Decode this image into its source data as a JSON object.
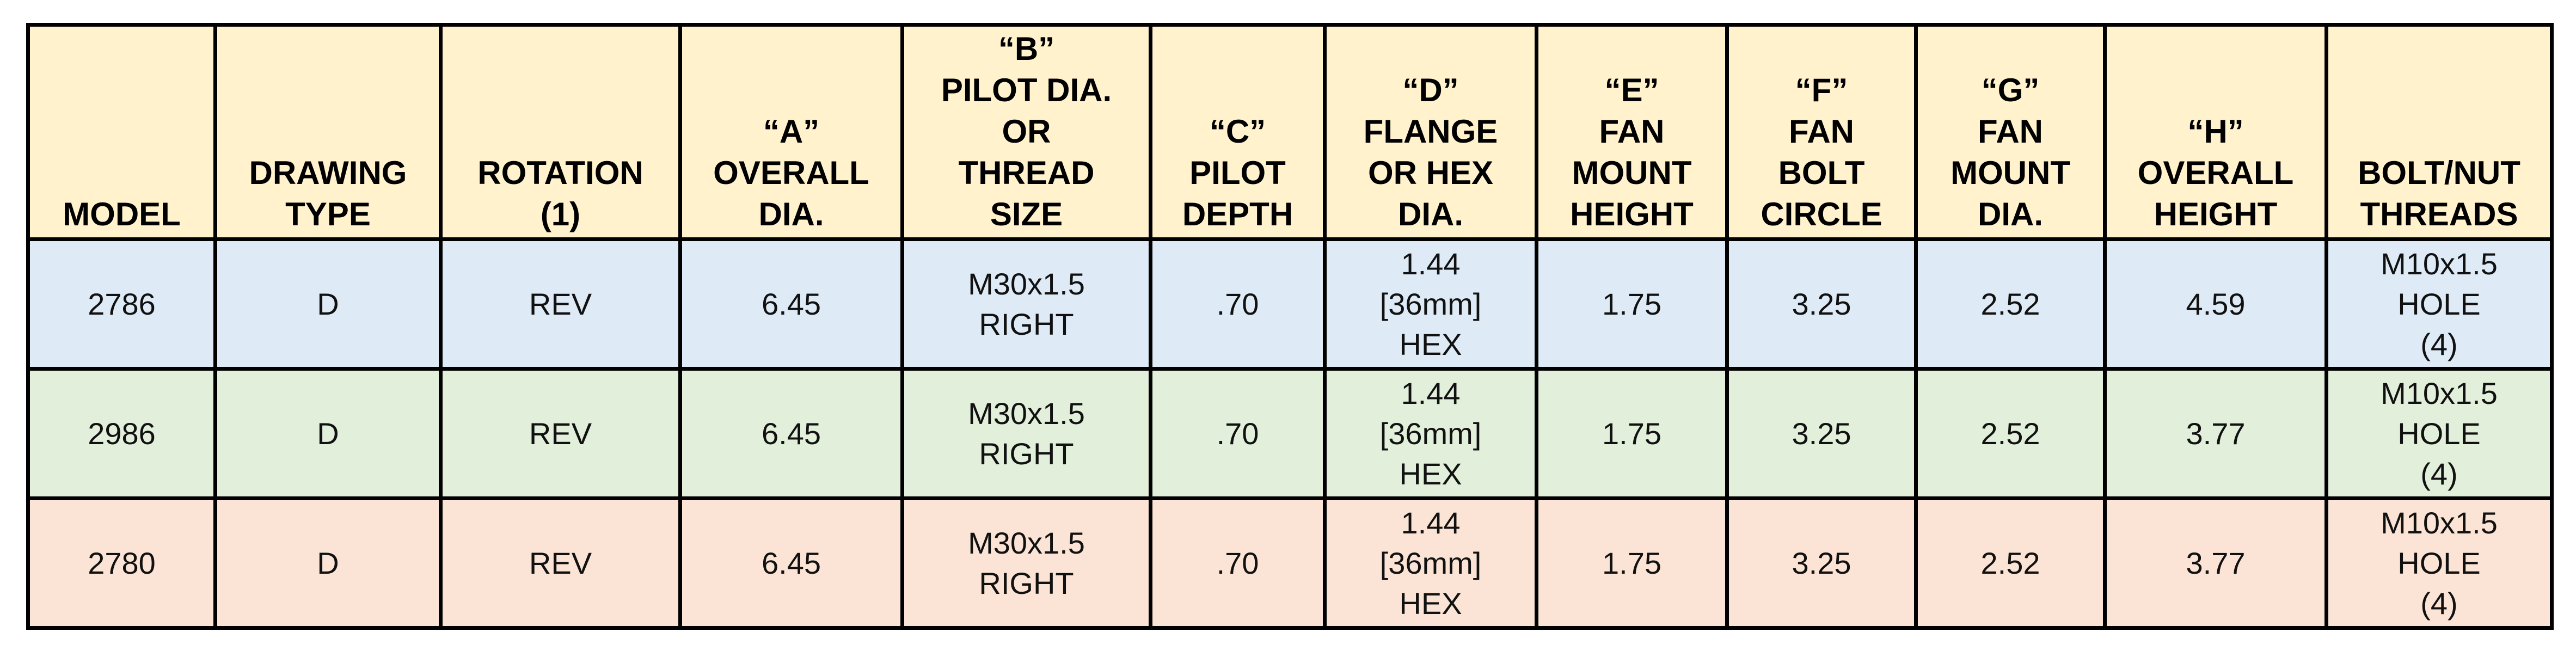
{
  "table": {
    "headers": [
      "MODEL",
      "DRAWING\nTYPE",
      "ROTATION\n(1)",
      "“A”\nOVERALL\nDIA.",
      "“B”\nPILOT DIA.\nOR\nTHREAD\nSIZE",
      "“C”\nPILOT\nDEPTH",
      "“D”\nFLANGE\nOR HEX\nDIA.",
      "“E”\nFAN\nMOUNT\nHEIGHT",
      "“F”\nFAN\nBOLT\nCIRCLE",
      "“G”\nFAN\nMOUNT\nDIA.",
      "“H”\nOVERALL\nHEIGHT",
      "BOLT/NUT\nTHREADS"
    ],
    "rows": [
      [
        "2786",
        "D",
        "REV",
        "6.45",
        "M30x1.5\nRIGHT",
        ".70",
        "1.44\n[36mm]\nHEX",
        "1.75",
        "3.25",
        "2.52",
        "4.59",
        "M10x1.5\nHOLE\n(4)"
      ],
      [
        "2986",
        "D",
        "REV",
        "6.45",
        "M30x1.5\nRIGHT",
        ".70",
        "1.44\n[36mm]\nHEX",
        "1.75",
        "3.25",
        "2.52",
        "3.77",
        "M10x1.5\nHOLE\n(4)"
      ],
      [
        "2780",
        "D",
        "REV",
        "6.45",
        "M30x1.5\nRIGHT",
        ".70",
        "1.44\n[36mm]\nHEX",
        "1.75",
        "3.25",
        "2.52",
        "3.77",
        "M10x1.5\nHOLE\n(4)"
      ]
    ]
  }
}
